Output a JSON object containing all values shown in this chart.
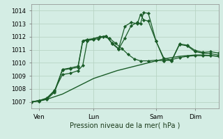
{
  "bg_color": "#d4ede4",
  "grid_color": "#b8d4c4",
  "line_color": "#1a5c28",
  "xlabel": "Pression niveau de la mer( hPa )",
  "ylim": [
    1006.5,
    1014.5
  ],
  "yticks": [
    1007,
    1008,
    1009,
    1010,
    1011,
    1012,
    1013,
    1014
  ],
  "xtick_labels": [
    "Ven",
    "Lun",
    "Sam",
    "Dim"
  ],
  "xtick_positions": [
    0.5,
    4.0,
    8.0,
    10.5
  ],
  "xlim": [
    0.0,
    12.0
  ],
  "series": [
    {
      "x": [
        0.0,
        0.5,
        1.0,
        1.5,
        2.0,
        2.5,
        3.0,
        3.5,
        4.0,
        4.5,
        5.0,
        5.5,
        6.0,
        6.5,
        7.0,
        7.5,
        8.0,
        8.5,
        9.0,
        9.5,
        10.0,
        10.5,
        11.0,
        11.5,
        12.0
      ],
      "y": [
        1007.0,
        1007.1,
        1007.2,
        1007.4,
        1007.6,
        1007.9,
        1008.2,
        1008.5,
        1008.8,
        1009.0,
        1009.2,
        1009.4,
        1009.55,
        1009.7,
        1009.85,
        1010.0,
        1010.15,
        1010.3,
        1010.4,
        1010.5,
        1010.55,
        1010.6,
        1010.6,
        1010.55,
        1010.5
      ],
      "marker": null,
      "lw": 1.0
    },
    {
      "x": [
        0.0,
        0.5,
        1.0,
        1.5,
        2.0,
        2.5,
        3.0,
        3.3,
        3.6,
        4.0,
        4.3,
        4.6,
        5.0,
        5.4,
        5.8,
        6.2,
        6.6,
        7.0,
        7.5,
        8.0,
        8.5,
        9.0,
        9.5,
        10.0,
        10.5,
        11.0,
        11.5,
        12.0
      ],
      "y": [
        1007.0,
        1007.1,
        1007.3,
        1007.9,
        1009.1,
        1009.2,
        1009.4,
        1009.8,
        1011.7,
        1011.8,
        1011.85,
        1012.0,
        1011.9,
        1011.5,
        1011.1,
        1010.65,
        1010.3,
        1010.15,
        1010.15,
        1010.2,
        1010.15,
        1010.25,
        1010.4,
        1010.5,
        1010.55,
        1010.55,
        1010.55,
        1010.5
      ],
      "marker": "D",
      "lw": 0.9
    },
    {
      "x": [
        0.0,
        0.5,
        1.0,
        1.5,
        2.0,
        2.5,
        3.0,
        3.3,
        3.6,
        4.0,
        4.4,
        4.8,
        5.2,
        5.6,
        6.0,
        6.4,
        6.8,
        7.0,
        7.2,
        7.5,
        8.0,
        8.5,
        9.0,
        9.5,
        10.0,
        10.5,
        11.0,
        11.5,
        12.0
      ],
      "y": [
        1007.0,
        1007.1,
        1007.25,
        1007.85,
        1009.5,
        1009.6,
        1009.75,
        1011.7,
        1011.8,
        1011.85,
        1012.0,
        1012.05,
        1011.45,
        1011.05,
        1011.9,
        1012.85,
        1013.1,
        1013.0,
        1013.85,
        1013.8,
        1011.65,
        1010.35,
        1010.2,
        1011.45,
        1011.35,
        1010.95,
        1010.8,
        1010.85,
        1010.75
      ],
      "marker": "D",
      "lw": 0.9
    },
    {
      "x": [
        0.0,
        0.5,
        1.0,
        1.5,
        2.0,
        2.5,
        3.0,
        3.3,
        3.6,
        4.0,
        4.4,
        4.8,
        5.2,
        5.6,
        6.0,
        6.4,
        6.8,
        7.0,
        7.2,
        7.5,
        8.0,
        8.5,
        9.0,
        9.5,
        10.0,
        10.5,
        11.0,
        11.5,
        12.0
      ],
      "y": [
        1007.0,
        1007.05,
        1007.2,
        1007.75,
        1009.45,
        1009.55,
        1009.65,
        1011.65,
        1011.75,
        1011.85,
        1012.0,
        1012.05,
        1011.5,
        1011.1,
        1012.8,
        1013.1,
        1013.0,
        1013.7,
        1013.3,
        1013.2,
        1011.65,
        1010.25,
        1010.15,
        1011.4,
        1011.3,
        1010.85,
        1010.75,
        1010.7,
        1010.6
      ],
      "marker": "D",
      "lw": 0.9
    }
  ]
}
